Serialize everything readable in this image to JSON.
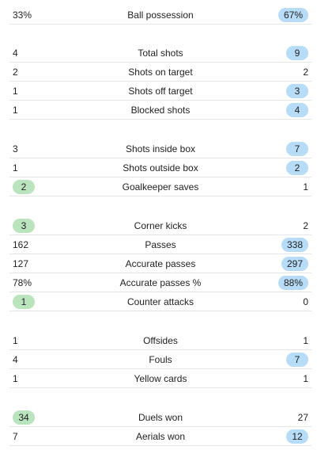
{
  "colors": {
    "home_highlight": "#b9e4bd",
    "away_highlight": "#b7dcf7",
    "divider": "#e6e6e6"
  },
  "groups": [
    [
      {
        "label": "Ball possession",
        "home": "33%",
        "away": "67%",
        "highlight": "away"
      }
    ],
    [
      {
        "label": "Total shots",
        "home": "4",
        "away": "9",
        "highlight": "away"
      },
      {
        "label": "Shots on target",
        "home": "2",
        "away": "2",
        "highlight": "none"
      },
      {
        "label": "Shots off target",
        "home": "1",
        "away": "3",
        "highlight": "away"
      },
      {
        "label": "Blocked shots",
        "home": "1",
        "away": "4",
        "highlight": "away"
      }
    ],
    [
      {
        "label": "Shots inside box",
        "home": "3",
        "away": "7",
        "highlight": "away"
      },
      {
        "label": "Shots outside box",
        "home": "1",
        "away": "2",
        "highlight": "away"
      },
      {
        "label": "Goalkeeper saves",
        "home": "2",
        "away": "1",
        "highlight": "home"
      }
    ],
    [
      {
        "label": "Corner kicks",
        "home": "3",
        "away": "2",
        "highlight": "home"
      },
      {
        "label": "Passes",
        "home": "162",
        "away": "338",
        "highlight": "away"
      },
      {
        "label": "Accurate passes",
        "home": "127",
        "away": "297",
        "highlight": "away"
      },
      {
        "label": "Accurate passes %",
        "home": "78%",
        "away": "88%",
        "highlight": "away"
      },
      {
        "label": "Counter attacks",
        "home": "1",
        "away": "0",
        "highlight": "home"
      }
    ],
    [
      {
        "label": "Offsides",
        "home": "1",
        "away": "1",
        "highlight": "none"
      },
      {
        "label": "Fouls",
        "home": "4",
        "away": "7",
        "highlight": "away"
      },
      {
        "label": "Yellow cards",
        "home": "1",
        "away": "1",
        "highlight": "none"
      }
    ],
    [
      {
        "label": "Duels won",
        "home": "34",
        "away": "27",
        "highlight": "home"
      },
      {
        "label": "Aerials won",
        "home": "7",
        "away": "12",
        "highlight": "away"
      }
    ]
  ]
}
